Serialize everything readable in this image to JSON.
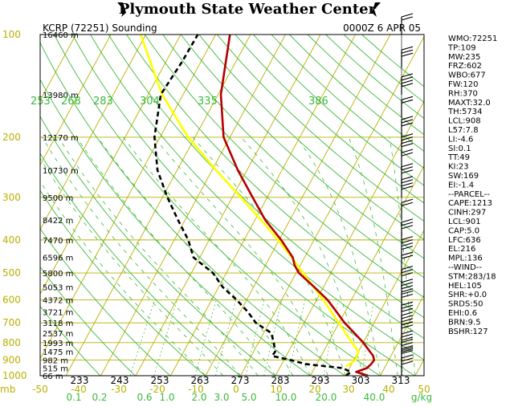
{
  "header": {
    "title": "Plymouth State Weather Center",
    "station": "KCRP (72251) Sounding",
    "time": "0000Z  6 APR 05"
  },
  "chart_data": {
    "type": "line",
    "title": "KCRP (72251) Sounding",
    "xlabel": "",
    "ylabel": "",
    "y_scale": "log",
    "ylim": [
      1000,
      100
    ],
    "pressure_ticks": [
      100,
      200,
      300,
      400,
      500,
      600,
      700,
      800,
      900,
      1000
    ],
    "pressure_tick_labels": [
      "100",
      "200",
      "300",
      "400",
      "500",
      "600",
      "700",
      "800",
      "900",
      "1000"
    ],
    "heights": [
      {
        "label": "16460 m",
        "p": 100
      },
      {
        "label": "13980 m",
        "p": 150
      },
      {
        "label": "12170 m",
        "p": 200
      },
      {
        "label": "10730 m",
        "p": 250
      },
      {
        "label": "9500 m",
        "p": 300
      },
      {
        "label": "8422 m",
        "p": 350
      },
      {
        "label": "7470 m",
        "p": 400
      },
      {
        "label": "6596 m",
        "p": 450
      },
      {
        "label": "5800 m",
        "p": 500
      },
      {
        "label": "5053 m",
        "p": 550
      },
      {
        "label": "4372 m",
        "p": 600
      },
      {
        "label": "3721 m",
        "p": 650
      },
      {
        "label": "3118 m",
        "p": 700
      },
      {
        "label": "2537 m",
        "p": 750
      },
      {
        "label": "1993 m",
        "p": 800
      },
      {
        "label": "1475 m",
        "p": 850
      },
      {
        "label": "982 m",
        "p": 900
      },
      {
        "label": "515 m",
        "p": 950
      },
      {
        "label": "66 m",
        "p": 1000
      }
    ],
    "theta_labels": [
      "253",
      "268",
      "283",
      "304",
      "335",
      "386"
    ],
    "temp_labels": [
      "233",
      "243",
      "253",
      "263",
      "273",
      "283",
      "293",
      "303",
      "313"
    ],
    "bottom_axis_labels": [
      "mb",
      "-50",
      "-40",
      "-30",
      "-20",
      "-10",
      "0",
      "10",
      "20",
      "30",
      "40",
      "50"
    ],
    "mixing_ratio_labels": [
      "0.1",
      "0.2",
      "0.6",
      "1.0",
      "2.0",
      "3.0",
      "5.0",
      "10.0",
      "20.0",
      "40.0",
      "g/kg"
    ],
    "temperature_range_c": [
      -50,
      50
    ],
    "series": [],
    "profiles": {
      "temperature": {
        "color": "#b40000",
        "points": [
          [
            1000,
            26.5
          ],
          [
            975,
            22.5
          ],
          [
            950,
            25.0
          ],
          [
            925,
            25.6
          ],
          [
            900,
            25.8
          ],
          [
            875,
            24.9
          ],
          [
            850,
            23.3
          ],
          [
            800,
            20.0
          ],
          [
            750,
            16.0
          ],
          [
            700,
            11.6
          ],
          [
            650,
            7.6
          ],
          [
            600,
            3.2
          ],
          [
            550,
            -2.6
          ],
          [
            500,
            -9.2
          ],
          [
            475,
            -11.6
          ],
          [
            450,
            -13.4
          ],
          [
            400,
            -19.4
          ],
          [
            350,
            -27.0
          ],
          [
            300,
            -34.2
          ],
          [
            250,
            -42.6
          ],
          [
            200,
            -51.8
          ],
          [
            150,
            -59.2
          ],
          [
            100,
            -65.9
          ]
        ]
      },
      "dewpoint": {
        "color": "#000000",
        "points": [
          [
            1000,
            20.2
          ],
          [
            975,
            21.0
          ],
          [
            950,
            18.0
          ],
          [
            925,
            7.0
          ],
          [
            900,
            2.0
          ],
          [
            875,
            -4.0
          ],
          [
            850,
            -3.8
          ],
          [
            800,
            -5.6
          ],
          [
            750,
            -7.8
          ],
          [
            700,
            -13.8
          ],
          [
            650,
            -17.8
          ],
          [
            600,
            -22.8
          ],
          [
            550,
            -28.8
          ],
          [
            500,
            -33.8
          ],
          [
            450,
            -41.8
          ],
          [
            400,
            -46.0
          ],
          [
            350,
            -52.0
          ],
          [
            300,
            -58.6
          ],
          [
            250,
            -65.6
          ],
          [
            200,
            -71.6
          ],
          [
            150,
            -76.4
          ],
          [
            120,
            -75.4
          ],
          [
            100,
            -75.1
          ]
        ]
      },
      "parcel": {
        "color": "#ffff00",
        "points": [
          [
            940,
            18.8
          ],
          [
            900,
            20.5
          ],
          [
            850,
            20.0
          ],
          [
            800,
            16.8
          ],
          [
            700,
            9.9
          ],
          [
            600,
            2.0
          ],
          [
            500,
            -8.0
          ],
          [
            450,
            -13.7
          ],
          [
            400,
            -20.3
          ],
          [
            350,
            -28.2
          ],
          [
            300,
            -37.6
          ],
          [
            250,
            -48.8
          ],
          [
            200,
            -62.0
          ],
          [
            150,
            -76.0
          ],
          [
            100,
            -91.5
          ]
        ]
      }
    }
  },
  "indices": [
    "WMO:72251",
    "TP:109",
    "MW:235",
    "FRZ:602",
    "WBO:677",
    "FW:120",
    "RH:370",
    "MAXT:32.0",
    "TH:5734",
    "LCL:908",
    "L57:7.8",
    "LI:-4.6",
    "SI:0.1",
    "TT:49",
    "KI:23",
    "SW:169",
    "EI:-1.4",
    "--PARCEL--",
    "CAPE:1213",
    "CINH:297",
    "LCL:901",
    "CAP:5.0",
    "LFC:636",
    "EL:216",
    "MPL:136",
    "--WIND--",
    "STM:283/18",
    "HEL:105",
    "SHR:+0.0",
    "SRDS:50",
    "EHI:0.6",
    "BRN:9.5",
    "BSHR:127"
  ]
}
